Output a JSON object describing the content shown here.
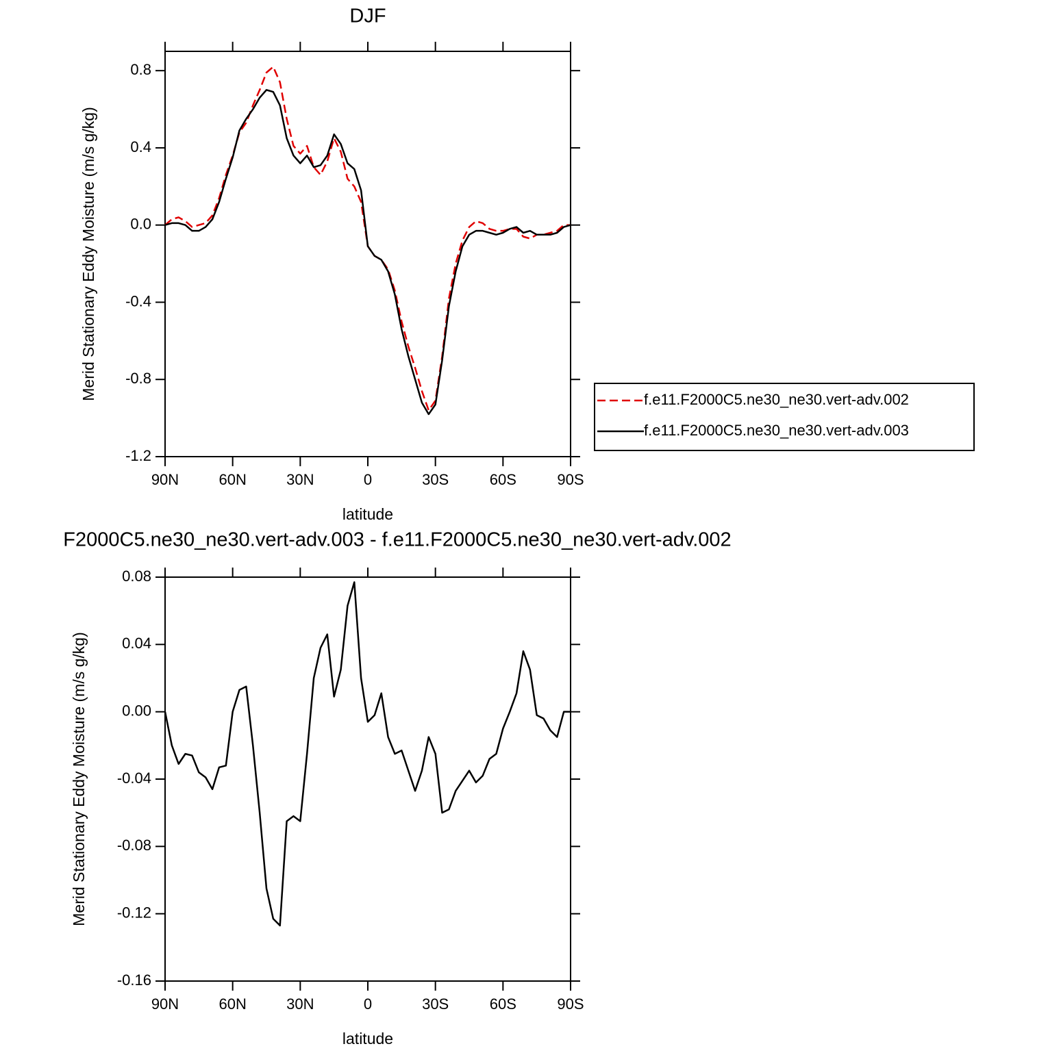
{
  "chart_data": [
    {
      "type": "line",
      "title": "DJF",
      "x_label": "latitude",
      "y_label": "Merid Stationary Eddy Moisture (m/s g/kg)",
      "x": [
        90,
        87,
        84,
        81,
        78,
        75,
        72,
        69,
        66,
        63,
        60,
        57,
        54,
        51,
        48,
        45,
        42,
        39,
        36,
        33,
        30,
        27,
        24,
        21,
        18,
        15,
        12,
        9,
        6,
        3,
        0,
        -3,
        -6,
        -9,
        -12,
        -15,
        -18,
        -21,
        -24,
        -27,
        -30,
        -33,
        -36,
        -39,
        -42,
        -45,
        -48,
        -51,
        -54,
        -57,
        -60,
        -63,
        -66,
        -69,
        -72,
        -75,
        -78,
        -81,
        -84,
        -87,
        -90
      ],
      "series": [
        {
          "name": "f.e11.F2000C5.ne30_ne30.vert-adv.002",
          "color": "#e00000",
          "linestyle": "dashed",
          "values": [
            0,
            0.03,
            0.04,
            0.02,
            -0.01,
            0,
            0.01,
            0.05,
            0.14,
            0.26,
            0.36,
            0.48,
            0.53,
            0.62,
            0.7,
            0.79,
            0.82,
            0.74,
            0.55,
            0.41,
            0.37,
            0.41,
            0.3,
            0.26,
            0.33,
            0.45,
            0.38,
            0.24,
            0.2,
            0.12,
            -0.11,
            -0.16,
            -0.18,
            -0.23,
            -0.34,
            -0.5,
            -0.63,
            -0.74,
            -0.86,
            -0.96,
            -0.91,
            -0.68,
            -0.38,
            -0.2,
            -0.08,
            -0.01,
            0.02,
            0.01,
            -0.02,
            -0.03,
            -0.03,
            -0.02,
            -0.02,
            -0.06,
            -0.07,
            -0.05,
            -0.05,
            -0.04,
            -0.03,
            0,
            0
          ]
        },
        {
          "name": "f.e11.F2000C5.ne30_ne30.vert-adv.003",
          "color": "#000000",
          "linestyle": "solid",
          "values": [
            0,
            0.01,
            0.01,
            0,
            -0.03,
            -0.03,
            -0.01,
            0.03,
            0.12,
            0.24,
            0.35,
            0.49,
            0.55,
            0.6,
            0.66,
            0.7,
            0.69,
            0.62,
            0.45,
            0.36,
            0.32,
            0.36,
            0.3,
            0.31,
            0.36,
            0.47,
            0.42,
            0.32,
            0.29,
            0.18,
            -0.11,
            -0.16,
            -0.18,
            -0.24,
            -0.36,
            -0.54,
            -0.68,
            -0.8,
            -0.92,
            -0.98,
            -0.93,
            -0.7,
            -0.42,
            -0.24,
            -0.11,
            -0.05,
            -0.03,
            -0.03,
            -0.04,
            -0.05,
            -0.04,
            -0.02,
            -0.01,
            -0.04,
            -0.03,
            -0.05,
            -0.05,
            -0.05,
            -0.04,
            -0.01,
            0
          ]
        }
      ],
      "xlim": [
        90,
        -90
      ],
      "xticks": [
        {
          "value": 90,
          "label": "90N"
        },
        {
          "value": 60,
          "label": "60N"
        },
        {
          "value": 30,
          "label": "30N"
        },
        0,
        {
          "value": -30,
          "label": "30S"
        },
        {
          "value": -60,
          "label": "60S"
        },
        {
          "value": -90,
          "label": "90S"
        }
      ],
      "ylim": [
        -1.2,
        0.9
      ],
      "yticks": [
        -1.2,
        -0.8,
        -0.4,
        {
          "value": 0,
          "label": "0.0"
        },
        0.4,
        0.8
      ],
      "legend": "right"
    },
    {
      "type": "line",
      "title": "F2000C5.ne30_ne30.vert-adv.003 - f.e11.F2000C5.ne30_ne30.vert-adv.002",
      "x_label": "latitude",
      "y_label": "Merid Stationary Eddy Moisture (m/s g/kg)",
      "x": [
        90,
        87,
        84,
        81,
        78,
        75,
        72,
        69,
        66,
        63,
        60,
        57,
        54,
        51,
        48,
        45,
        42,
        39,
        36,
        33,
        30,
        27,
        24,
        21,
        18,
        15,
        12,
        9,
        6,
        3,
        0,
        -3,
        -6,
        -9,
        -12,
        -15,
        -18,
        -21,
        -24,
        -27,
        -30,
        -33,
        -36,
        -39,
        -42,
        -45,
        -48,
        -51,
        -54,
        -57,
        -60,
        -63,
        -66,
        -69,
        -72,
        -75,
        -78,
        -81,
        -84,
        -87,
        -90
      ],
      "series": [
        {
          "color": "#000000",
          "linestyle": "solid",
          "values": [
            0,
            -0.02,
            -0.031,
            -0.025,
            -0.026,
            -0.036,
            -0.039,
            -0.046,
            -0.033,
            -0.032,
            0,
            0.013,
            0.015,
            -0.02,
            -0.06,
            -0.105,
            -0.123,
            -0.127,
            -0.065,
            -0.062,
            -0.065,
            -0.025,
            0.02,
            0.038,
            0.046,
            0.009,
            0.025,
            0.063,
            0.077,
            0.02,
            -0.006,
            -0.002,
            0.011,
            -0.015,
            -0.025,
            -0.023,
            -0.035,
            -0.047,
            -0.035,
            -0.015,
            -0.025,
            -0.06,
            -0.058,
            -0.047,
            -0.041,
            -0.035,
            -0.042,
            -0.038,
            -0.028,
            -0.025,
            -0.01,
            0,
            0.011,
            0.036,
            0.025,
            -0.002,
            -0.004,
            -0.011,
            -0.015,
            0,
            0
          ]
        }
      ],
      "xlim": [
        90,
        -90
      ],
      "xticks": [
        {
          "value": 90,
          "label": "90N"
        },
        {
          "value": 60,
          "label": "60N"
        },
        {
          "value": 30,
          "label": "30N"
        },
        0,
        {
          "value": -30,
          "label": "30S"
        },
        {
          "value": -60,
          "label": "60S"
        },
        {
          "value": -90,
          "label": "90S"
        }
      ],
      "ylim": [
        -0.16,
        0.08
      ],
      "yticks": [
        -0.16,
        -0.12,
        -0.08,
        -0.04,
        {
          "value": 0,
          "label": "0.00"
        },
        0.04,
        0.08
      ]
    }
  ]
}
